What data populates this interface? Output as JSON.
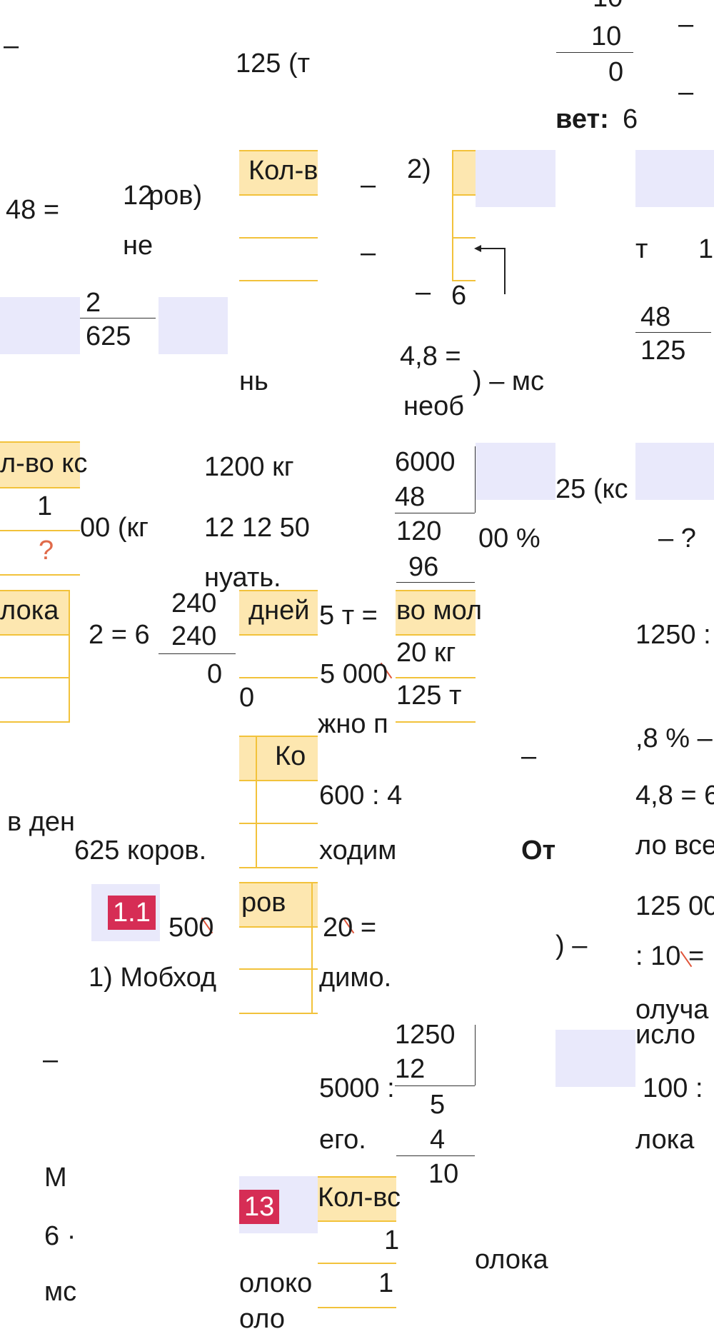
{
  "texts": {
    "t01": "–",
    "t02": "125 (т",
    "t03": "10",
    "t04": "10",
    "t05": "0",
    "t06": "–",
    "t07": "–",
    "t08": "вет:",
    "t09": "6",
    "t10": "Кол-в",
    "t11": "2)",
    "t12": "48 =",
    "t13": "12",
    "t14": "ров)",
    "t15": "не",
    "t16": "–",
    "t17": "–",
    "t18": "т",
    "t19": "1",
    "t20": "2",
    "t21": "625",
    "t22": "–",
    "t23": "6",
    "t24": "48",
    "t25": "125",
    "t26": "4,8 =",
    "t27": ") – мс",
    "t28": "нь",
    "t29": "необ",
    "t30": "л-во кс",
    "t31": "1200 кг",
    "t32": "6000",
    "t33": "48",
    "t34": "25 (кс",
    "t35": "1",
    "t36": "00 (кг",
    "t37": "12 12 50",
    "t38": "120",
    "t39": "00 %",
    "t40": "– ?",
    "t41": "?",
    "t42": "96",
    "t43": "нуать.",
    "t44": "лока",
    "t45": "240",
    "t46": "дней",
    "t47": "5 т =",
    "t48": "во мол",
    "t49": "2 = 6",
    "t50": "240",
    "t51": "1250 :",
    "t52": "0",
    "t53": "5 000",
    "t54": "20 кг",
    "t55": "0",
    "t56": "125 т",
    "t57": "жно п",
    "t58": "Ко",
    "t59": "–",
    "t60": ",8 % –",
    "t61": "600 : 4",
    "t62": "4,8 = 6",
    "t63": "в ден",
    "t64": "625 коров.",
    "t65": "ходим",
    "t66": "От",
    "t67": "ло все",
    "t68": "ров",
    "t69": "1.1",
    "t70": "500",
    "t71": "20 =",
    "t72": "125 00",
    "t73": ") –",
    "t74": ": 10 =",
    "t75": "1) Мобход",
    "t76": "димо.",
    "t77": "олуча",
    "t78": "1250",
    "t79": "исло",
    "t80": "–",
    "t81": "12",
    "t82": "5000 :",
    "t83": "5",
    "t84": "100 :",
    "t85": "его.",
    "t86": "4",
    "t87": "лока",
    "t88": "10",
    "t89": "М",
    "t90": "13",
    "t91": "Кол-вс",
    "t92": "1",
    "t93": "6 ·",
    "t94": "олоко",
    "t95": "1",
    "t96": "олока",
    "t97": "мс",
    "t98": "оло"
  },
  "colors": {
    "tile_fill": "#e9e9fb",
    "table_header_fill": "#fde7b0",
    "table_border": "#f2c23b",
    "badge": "#d62d55",
    "question_mark": "#e06a4a",
    "strike": "#e0553a"
  }
}
